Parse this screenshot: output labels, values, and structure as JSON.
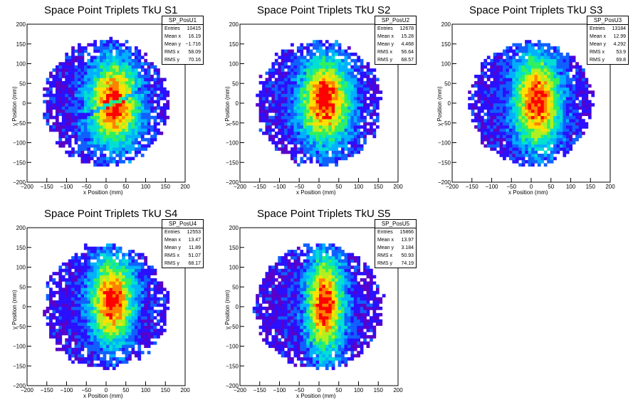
{
  "chart_data": [
    {
      "type": "heatmap",
      "title": "Space Point Triplets TkU S1",
      "xlabel": "x Position (mm)",
      "ylabel": "y Position (mm)",
      "xlim": [
        -200,
        200
      ],
      "ylim": [
        -200,
        200
      ],
      "xticks": [
        "−200",
        "−150",
        "−100",
        "−50",
        "0",
        "50",
        "100",
        "150",
        "200"
      ],
      "yticks": [
        "200",
        "150",
        "100",
        "50",
        "0",
        "−50",
        "−100",
        "−150",
        "−200"
      ],
      "stats": {
        "name": "SP_PosU1",
        "rows": [
          [
            "Entries",
            "10415"
          ],
          [
            "Mean x",
            "16.19"
          ],
          [
            "Mean y",
            "−1.716"
          ],
          [
            "RMS x",
            "58.09"
          ],
          [
            "RMS y",
            "70.16"
          ]
        ]
      },
      "shape": {
        "cx": 0,
        "cy": 0,
        "r": 158,
        "hot_cx": 20,
        "hot_cy": 0,
        "hot_wx": 45,
        "hot_wy": 75,
        "gap": true,
        "seed": 11
      }
    },
    {
      "type": "heatmap",
      "title": "Space Point Triplets TkU S2",
      "xlabel": "x Position (mm)",
      "ylabel": "y Position (mm)",
      "xlim": [
        -200,
        200
      ],
      "ylim": [
        -200,
        200
      ],
      "xticks": [
        "−200",
        "−150",
        "−100",
        "−50",
        "0",
        "50",
        "100",
        "150",
        "200"
      ],
      "yticks": [
        "200",
        "150",
        "100",
        "50",
        "0",
        "−50",
        "−100",
        "−150",
        "−200"
      ],
      "stats": {
        "name": "SP_PosU2",
        "rows": [
          [
            "Entries",
            "12678"
          ],
          [
            "Mean x",
            "15.28"
          ],
          [
            "Mean y",
            "4.468"
          ],
          [
            "RMS x",
            "56.64"
          ],
          [
            "RMS y",
            "68.57"
          ]
        ]
      },
      "shape": {
        "cx": 0,
        "cy": 0,
        "r": 158,
        "hot_cx": 15,
        "hot_cy": 5,
        "hot_wx": 45,
        "hot_wy": 75,
        "gap": false,
        "seed": 23
      }
    },
    {
      "type": "heatmap",
      "title": "Space Point Triplets TkU S3",
      "xlabel": "x Position (mm)",
      "ylabel": "y Position (mm)",
      "xlim": [
        -200,
        200
      ],
      "ylim": [
        -200,
        200
      ],
      "xticks": [
        "−200",
        "−150",
        "−100",
        "−50",
        "0",
        "50",
        "100",
        "150",
        "200"
      ],
      "yticks": [
        "200",
        "150",
        "100",
        "50",
        "0",
        "−50",
        "−100",
        "−150",
        "−200"
      ],
      "stats": {
        "name": "SP_PosU3",
        "rows": [
          [
            "Entries",
            "13184"
          ],
          [
            "Mean x",
            "12.99"
          ],
          [
            "Mean y",
            "4.292"
          ],
          [
            "RMS x",
            "53.9"
          ],
          [
            "RMS y",
            "69.8"
          ]
        ]
      },
      "shape": {
        "cx": 0,
        "cy": 0,
        "r": 155,
        "hot_cx": 15,
        "hot_cy": 5,
        "hot_wx": 40,
        "hot_wy": 80,
        "gap": false,
        "seed": 37
      }
    },
    {
      "type": "heatmap",
      "title": "Space Point Triplets TkU S4",
      "xlabel": "x Position (mm)",
      "ylabel": "y Position (mm)",
      "xlim": [
        -200,
        200
      ],
      "ylim": [
        -200,
        200
      ],
      "xticks": [
        "−200",
        "−150",
        "−100",
        "−50",
        "0",
        "50",
        "100",
        "150",
        "200"
      ],
      "yticks": [
        "200",
        "150",
        "100",
        "50",
        "0",
        "−50",
        "−100",
        "−150",
        "−200"
      ],
      "stats": {
        "name": "SP_PosU4",
        "rows": [
          [
            "Entries",
            "12553"
          ],
          [
            "Mean x",
            "13.47"
          ],
          [
            "Mean y",
            "11.89"
          ],
          [
            "RMS x",
            "51.07"
          ],
          [
            "RMS y",
            "68.17"
          ]
        ]
      },
      "shape": {
        "cx": 0,
        "cy": 0,
        "r": 158,
        "hot_cx": 15,
        "hot_cy": 15,
        "hot_wx": 38,
        "hot_wy": 75,
        "gap": false,
        "seed": 51
      }
    },
    {
      "type": "heatmap",
      "title": "Space Point Triplets TkU S5",
      "xlabel": "x Position (mm)",
      "ylabel": "y Position (mm)",
      "xlim": [
        -200,
        200
      ],
      "ylim": [
        -200,
        200
      ],
      "xticks": [
        "−200",
        "−150",
        "−100",
        "−50",
        "0",
        "50",
        "100",
        "150",
        "200"
      ],
      "yticks": [
        "200",
        "150",
        "100",
        "50",
        "0",
        "−50",
        "−100",
        "−150",
        "−200"
      ],
      "stats": {
        "name": "SP_PosU5",
        "rows": [
          [
            "Entries",
            "15866"
          ],
          [
            "Mean x",
            "13.97"
          ],
          [
            "Mean y",
            "3.184"
          ],
          [
            "RMS x",
            "50.93"
          ],
          [
            "RMS y",
            "74.19"
          ]
        ]
      },
      "shape": {
        "cx": 0,
        "cy": 0,
        "r": 160,
        "hot_cx": 15,
        "hot_cy": 5,
        "hot_wx": 33,
        "hot_wy": 85,
        "gap": false,
        "seed": 67
      }
    }
  ],
  "colors": {
    "palette": [
      "#5a00c8",
      "#2a10ff",
      "#1060ff",
      "#00b0ff",
      "#00e0d0",
      "#30f060",
      "#b0f020",
      "#ffe000",
      "#ff8000",
      "#ff0000"
    ]
  }
}
